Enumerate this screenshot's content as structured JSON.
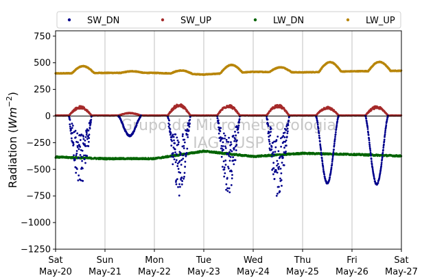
{
  "chart_data": {
    "type": "scatter",
    "ylabel_parts": {
      "main": "Radiation (",
      "unit": "Wm",
      "exp": "−2",
      "close": ")"
    },
    "ylim": [
      -1250,
      800
    ],
    "yticks": [
      {
        "value": 750,
        "label": "750"
      },
      {
        "value": 500,
        "label": "500"
      },
      {
        "value": 250,
        "label": "250"
      },
      {
        "value": 0,
        "label": "0"
      },
      {
        "value": -250,
        "label": "−250"
      },
      {
        "value": -500,
        "label": "−500"
      },
      {
        "value": -750,
        "label": "−750"
      },
      {
        "value": -1000,
        "label": "−1000"
      },
      {
        "value": -1250,
        "label": "−1250"
      }
    ],
    "xlim_days": [
      0,
      7
    ],
    "xticks": [
      {
        "day": "Sat",
        "date": "May-20"
      },
      {
        "day": "Sun",
        "date": "May-21"
      },
      {
        "day": "Mon",
        "date": "May-22"
      },
      {
        "day": "Tue",
        "date": "May-23"
      },
      {
        "day": "Wed",
        "date": "May-24"
      },
      {
        "day": "Thu",
        "date": "May-25"
      },
      {
        "day": "Fri",
        "date": "May-26"
      },
      {
        "day": "Sat",
        "date": "May-27"
      }
    ],
    "grid": "vertical",
    "legend_position": "top, above plot",
    "series": [
      {
        "name": "SW_DN",
        "color": "#00008b",
        "daily_min": [
          -650,
          -185,
          -780,
          -740,
          -760,
          -630,
          -640
        ]
      },
      {
        "name": "SW_UP",
        "color": "#a52a2a",
        "daily_max": [
          90,
          30,
          110,
          105,
          105,
          85,
          90
        ]
      },
      {
        "name": "LW_DN",
        "color": "#006400",
        "base": -390,
        "daily_values": [
          -385,
          -400,
          -400,
          -330,
          -380,
          -350,
          -360,
          -375
        ]
      },
      {
        "name": "LW_UP",
        "color": "#b8860b",
        "daily_values": [
          400,
          405,
          405,
          390,
          415,
          410,
          420,
          425
        ],
        "daily_peaks": [
          465,
          420,
          435,
          465,
          460,
          500,
          505
        ]
      }
    ],
    "zero_line": true
  },
  "watermark": {
    "line1": "Grupo de Micrometeorologia",
    "line2": "IAG - USP"
  }
}
